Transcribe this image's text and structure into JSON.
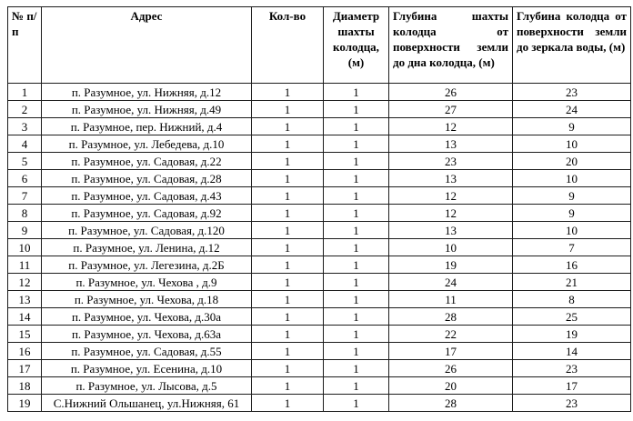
{
  "table": {
    "headers": [
      "№ п/п",
      "Адрес",
      "Кол-во",
      "Диаметр шахты колодца, (м)",
      "Глубина шахты колодца от поверхности земли до дна колодца, (м)",
      "Глубина колодца от поверхности земли до зеркала воды, (м)"
    ],
    "rows": [
      [
        "1",
        "п. Разумное, ул. Нижняя, д.12",
        "1",
        "1",
        "26",
        "23"
      ],
      [
        "2",
        "п. Разумное, ул. Нижняя, д.49",
        "1",
        "1",
        "27",
        "24"
      ],
      [
        "3",
        "п. Разумное, пер. Нижний, д.4",
        "1",
        "1",
        "12",
        "9"
      ],
      [
        "4",
        "п. Разумное, ул. Лебедева, д.10",
        "1",
        "1",
        "13",
        "10"
      ],
      [
        "5",
        "п. Разумное, ул. Садовая, д.22",
        "1",
        "1",
        "23",
        "20"
      ],
      [
        "6",
        "п. Разумное, ул. Садовая, д.28",
        "1",
        "1",
        "13",
        "10"
      ],
      [
        "7",
        "п. Разумное, ул. Садовая, д.43",
        "1",
        "1",
        "12",
        "9"
      ],
      [
        "8",
        "п. Разумное, ул. Садовая, д.92",
        "1",
        "1",
        "12",
        "9"
      ],
      [
        "9",
        "п. Разумное, ул. Садовая, д.120",
        "1",
        "1",
        "13",
        "10"
      ],
      [
        "10",
        "п. Разумное, ул. Ленина, д.12",
        "1",
        "1",
        "10",
        "7"
      ],
      [
        "11",
        "п. Разумное, ул. Легезина, д.2Б",
        "1",
        "1",
        "19",
        "16"
      ],
      [
        "12",
        "п. Разумное, ул. Чехова , д.9",
        "1",
        "1",
        "24",
        "21"
      ],
      [
        "13",
        "п. Разумное, ул. Чехова, д.18",
        "1",
        "1",
        "11",
        "8"
      ],
      [
        "14",
        "п. Разумное, ул. Чехова, д.30а",
        "1",
        "1",
        "28",
        "25"
      ],
      [
        "15",
        "п. Разумное, ул. Чехова, д.63а",
        "1",
        "1",
        "22",
        "19"
      ],
      [
        "16",
        "п. Разумное, ул. Садовая, д.55",
        "1",
        "1",
        "17",
        "14"
      ],
      [
        "17",
        "п. Разумное, ул. Есенина, д.10",
        "1",
        "1",
        "26",
        "23"
      ],
      [
        "18",
        "п. Разумное, ул. Лысова, д.5",
        "1",
        "1",
        "20",
        "17"
      ],
      [
        "19",
        "С.Нижний Ольшанец, ул.Нижняя, 61",
        "1",
        "1",
        "28",
        "23"
      ]
    ]
  }
}
